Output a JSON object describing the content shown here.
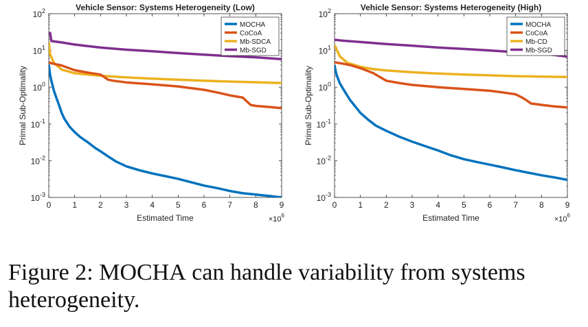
{
  "chart_data": [
    {
      "type": "line",
      "title": "Vehicle Sensor: Systems Heterogeneity (Low)",
      "xlabel": "Estimated Time",
      "ylabel": "Primal Sub-Optimality",
      "x_exponent_label": "×10",
      "x_exponent": "6",
      "xlim": [
        0,
        9
      ],
      "ylim": [
        0.001,
        100
      ],
      "yscale": "log",
      "xticks": [
        "0",
        "1",
        "2",
        "3",
        "4",
        "5",
        "6",
        "7",
        "8",
        "9"
      ],
      "yticks": [
        {
          "base": "10",
          "exp": "-3"
        },
        {
          "base": "10",
          "exp": "-2"
        },
        {
          "base": "10",
          "exp": "-1"
        },
        {
          "base": "10",
          "exp": "0"
        },
        {
          "base": "10",
          "exp": "1"
        },
        {
          "base": "10",
          "exp": "2"
        }
      ],
      "legend_position": "top-right",
      "series": [
        {
          "name": "MOCHA",
          "color": "#0072BD",
          "x": [
            0,
            0.05,
            0.1,
            0.2,
            0.3,
            0.4,
            0.5,
            0.6,
            0.8,
            1.0,
            1.2,
            1.5,
            1.8,
            2.0,
            2.3,
            2.6,
            3.0,
            3.5,
            4.0,
            4.5,
            5.0,
            5.5,
            6.0,
            6.5,
            7.0,
            7.5,
            8.0,
            8.5,
            9.0
          ],
          "y": [
            4.2,
            2.2,
            1.5,
            0.8,
            0.5,
            0.32,
            0.2,
            0.14,
            0.085,
            0.06,
            0.045,
            0.032,
            0.022,
            0.018,
            0.013,
            0.0095,
            0.007,
            0.0055,
            0.0045,
            0.0038,
            0.0032,
            0.0026,
            0.0021,
            0.0018,
            0.0015,
            0.0013,
            0.0012,
            0.0011,
            0.001
          ]
        },
        {
          "name": "CoCoA",
          "color": "#D95319",
          "x": [
            0,
            0.05,
            0.2,
            0.5,
            1.0,
            1.5,
            2.0,
            2.3,
            2.5,
            3.0,
            4.0,
            5.0,
            6.0,
            6.5,
            7.0,
            7.5,
            7.8,
            8.0,
            8.5,
            9.0
          ],
          "y": [
            4.8,
            4.6,
            4.3,
            3.9,
            2.9,
            2.5,
            2.2,
            1.6,
            1.5,
            1.35,
            1.2,
            1.05,
            0.85,
            0.72,
            0.6,
            0.52,
            0.33,
            0.31,
            0.29,
            0.27
          ]
        },
        {
          "name": "Mb-SDCA",
          "color": "#EDB120",
          "x": [
            0,
            0.05,
            0.2,
            0.5,
            1.0,
            1.5,
            2.0,
            3.0,
            4.0,
            5.0,
            6.0,
            7.0,
            8.0,
            9.0
          ],
          "y": [
            17,
            8,
            4.6,
            3.0,
            2.4,
            2.2,
            2.05,
            1.85,
            1.7,
            1.6,
            1.5,
            1.42,
            1.36,
            1.3
          ]
        },
        {
          "name": "Mb-SGD",
          "color": "#7E2F8E",
          "x": [
            0,
            0.05,
            0.1,
            0.5,
            1.0,
            2.0,
            3.0,
            4.0,
            5.0,
            6.0,
            7.0,
            8.0,
            9.0
          ],
          "y": [
            28,
            30,
            18,
            16.5,
            14.5,
            12,
            10.5,
            9.5,
            8.5,
            7.7,
            7.0,
            6.5,
            5.8
          ]
        }
      ]
    },
    {
      "type": "line",
      "title": "Vehicle Sensor: Systems Heterogeneity (High)",
      "xlabel": "Estimated Time",
      "ylabel": "Primal Sub-Optimality",
      "x_exponent_label": "×10",
      "x_exponent": "6",
      "xlim": [
        0,
        9
      ],
      "ylim": [
        0.001,
        100
      ],
      "yscale": "log",
      "xticks": [
        "0",
        "1",
        "2",
        "3",
        "4",
        "5",
        "6",
        "7",
        "8",
        "9"
      ],
      "yticks": [
        {
          "base": "10",
          "exp": "-3"
        },
        {
          "base": "10",
          "exp": "-2"
        },
        {
          "base": "10",
          "exp": "-1"
        },
        {
          "base": "10",
          "exp": "0"
        },
        {
          "base": "10",
          "exp": "1"
        },
        {
          "base": "10",
          "exp": "2"
        }
      ],
      "legend_position": "top-right",
      "series": [
        {
          "name": "MOCHA",
          "color": "#0072BD",
          "x": [
            0,
            0.05,
            0.1,
            0.2,
            0.4,
            0.6,
            0.8,
            1.0,
            1.3,
            1.6,
            2.0,
            2.5,
            3.0,
            3.5,
            4.0,
            4.5,
            5.0,
            5.5,
            6.0,
            6.5,
            7.0,
            7.5,
            8.0,
            8.5,
            9.0
          ],
          "y": [
            4.0,
            2.6,
            2.0,
            1.3,
            0.75,
            0.45,
            0.3,
            0.2,
            0.13,
            0.09,
            0.065,
            0.045,
            0.033,
            0.025,
            0.019,
            0.014,
            0.011,
            0.0092,
            0.0078,
            0.0066,
            0.0055,
            0.0047,
            0.004,
            0.0035,
            0.003
          ]
        },
        {
          "name": "CoCoA",
          "color": "#D95319",
          "x": [
            0,
            0.05,
            0.3,
            0.6,
            1.0,
            1.5,
            2.0,
            2.5,
            3.0,
            4.0,
            5.0,
            6.0,
            6.5,
            7.0,
            7.3,
            7.6,
            8.0,
            8.5,
            9.0
          ],
          "y": [
            4.8,
            4.7,
            4.4,
            4.0,
            3.3,
            2.4,
            1.5,
            1.3,
            1.15,
            1.0,
            0.9,
            0.8,
            0.72,
            0.64,
            0.5,
            0.36,
            0.33,
            0.3,
            0.28
          ]
        },
        {
          "name": "Mb-CD",
          "color": "#EDB120",
          "x": [
            0,
            0.05,
            0.2,
            0.5,
            1.0,
            1.5,
            2.0,
            3.0,
            4.0,
            5.0,
            6.0,
            7.0,
            8.0,
            9.0
          ],
          "y": [
            14,
            12,
            7,
            4.6,
            3.6,
            3.1,
            2.85,
            2.55,
            2.35,
            2.2,
            2.1,
            2.0,
            1.95,
            1.9
          ]
        },
        {
          "name": "Mb-SGD",
          "color": "#7E2F8E",
          "x": [
            0,
            0.05,
            0.3,
            1.0,
            2.0,
            3.0,
            4.0,
            5.0,
            6.0,
            7.0,
            8.0,
            8.5,
            9.0
          ],
          "y": [
            19,
            19.5,
            18.5,
            17,
            15,
            13.5,
            12,
            11,
            10,
            9,
            8.2,
            7.5,
            6.8
          ]
        }
      ]
    }
  ],
  "caption": {
    "prefix": "Figure 2: ",
    "name": "MOCHA",
    "suffix": " can handle variability from systems heterogeneity."
  }
}
